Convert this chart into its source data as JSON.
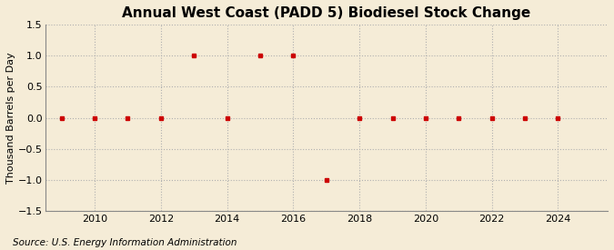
{
  "title": "Annual West Coast (PADD 5) Biodiesel Stock Change",
  "ylabel": "Thousand Barrels per Day",
  "source": "Source: U.S. Energy Information Administration",
  "background_color": "#f5ecd7",
  "plot_bg_color": "#f5ecd7",
  "years": [
    2009,
    2010,
    2011,
    2012,
    2013,
    2014,
    2015,
    2016,
    2017,
    2018,
    2019,
    2020,
    2021,
    2022,
    2023,
    2024
  ],
  "values": [
    0.0,
    0.0,
    0.0,
    0.0,
    1.0,
    0.0,
    1.0,
    1.0,
    -1.0,
    0.0,
    0.0,
    0.0,
    0.0,
    0.0,
    0.0,
    0.0
  ],
  "ylim": [
    -1.5,
    1.5
  ],
  "yticks": [
    -1.5,
    -1.0,
    -0.5,
    0.0,
    0.5,
    1.0,
    1.5
  ],
  "xticks": [
    2010,
    2012,
    2014,
    2016,
    2018,
    2020,
    2022,
    2024
  ],
  "xlim_left": 2008.5,
  "xlim_right": 2025.5,
  "marker_color": "#cc0000",
  "marker": "s",
  "marker_size": 3.5,
  "grid_color": "#b0b0b0",
  "grid_style": ":",
  "title_fontsize": 11,
  "label_fontsize": 8,
  "tick_fontsize": 8,
  "source_fontsize": 7.5
}
